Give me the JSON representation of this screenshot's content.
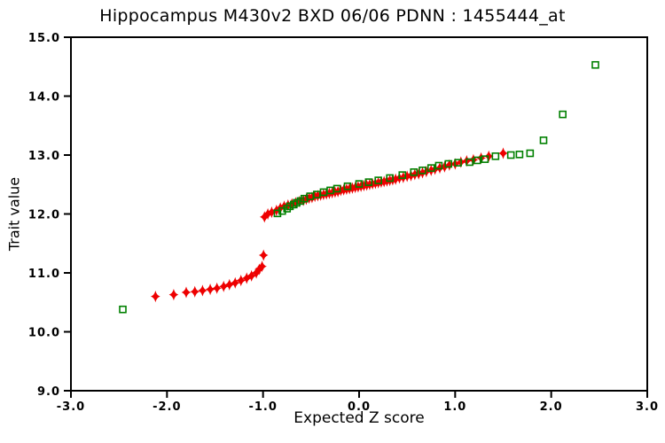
{
  "window": {
    "background": "#ffffff"
  },
  "chart_data": {
    "type": "scatter",
    "title": "Hippocampus M430v2 BXD 06/06 PDNN : 1455444_at",
    "xlabel": "Expected Z score",
    "ylabel": "Trait value",
    "xlim": [
      -3.0,
      3.0
    ],
    "ylim": [
      9.0,
      15.0
    ],
    "x_ticks": [
      -3.0,
      -2.0,
      -1.0,
      0.0,
      1.0,
      2.0,
      3.0
    ],
    "x_tick_labels": [
      "-3.0",
      "-2.0",
      "-1.0",
      "0.0",
      "1.0",
      "2.0",
      "3.0"
    ],
    "y_ticks": [
      9.0,
      10.0,
      11.0,
      12.0,
      13.0,
      14.0,
      15.0
    ],
    "y_tick_labels": [
      "9.0",
      "10.0",
      "11.0",
      "12.0",
      "13.0",
      "14.0",
      "15.0"
    ],
    "grid": false,
    "legend": "none",
    "axis_color": "#000000",
    "series": [
      {
        "name": "trait-values-red-diamonds",
        "marker": "filled-diamond",
        "color": "#ee0000",
        "points": [
          [
            -2.12,
            10.6
          ],
          [
            -1.93,
            10.63
          ],
          [
            -1.8,
            10.67
          ],
          [
            -1.71,
            10.68
          ],
          [
            -1.63,
            10.7
          ],
          [
            -1.55,
            10.72
          ],
          [
            -1.48,
            10.74
          ],
          [
            -1.41,
            10.77
          ],
          [
            -1.35,
            10.8
          ],
          [
            -1.29,
            10.83
          ],
          [
            -1.23,
            10.87
          ],
          [
            -1.17,
            10.91
          ],
          [
            -1.12,
            10.95
          ],
          [
            -1.07,
            11.0
          ],
          [
            -1.04,
            11.06
          ],
          [
            -1.01,
            11.11
          ],
          [
            -0.995,
            11.3
          ],
          [
            -0.985,
            11.95
          ],
          [
            -0.95,
            12.0
          ],
          [
            -0.91,
            12.03
          ],
          [
            -0.86,
            12.06
          ],
          [
            -0.82,
            12.1
          ],
          [
            -0.78,
            12.13
          ],
          [
            -0.74,
            12.15
          ],
          [
            -0.7,
            12.17
          ],
          [
            -0.66,
            12.19
          ],
          [
            -0.62,
            12.21
          ],
          [
            -0.58,
            12.23
          ],
          [
            -0.55,
            12.25
          ],
          [
            -0.52,
            12.27
          ],
          [
            -0.49,
            12.28
          ],
          [
            -0.46,
            12.3
          ],
          [
            -0.43,
            12.31
          ],
          [
            -0.4,
            12.32
          ],
          [
            -0.37,
            12.33
          ],
          [
            -0.34,
            12.34
          ],
          [
            -0.31,
            12.35
          ],
          [
            -0.28,
            12.36
          ],
          [
            -0.25,
            12.37
          ],
          [
            -0.22,
            12.38
          ],
          [
            -0.19,
            12.4
          ],
          [
            -0.16,
            12.41
          ],
          [
            -0.13,
            12.42
          ],
          [
            -0.1,
            12.43
          ],
          [
            -0.07,
            12.44
          ],
          [
            -0.04,
            12.45
          ],
          [
            -0.01,
            12.46
          ],
          [
            0.02,
            12.47
          ],
          [
            0.05,
            12.48
          ],
          [
            0.08,
            12.49
          ],
          [
            0.11,
            12.5
          ],
          [
            0.14,
            12.51
          ],
          [
            0.17,
            12.52
          ],
          [
            0.2,
            12.53
          ],
          [
            0.23,
            12.54
          ],
          [
            0.26,
            12.55
          ],
          [
            0.29,
            12.56
          ],
          [
            0.32,
            12.57
          ],
          [
            0.35,
            12.58
          ],
          [
            0.38,
            12.59
          ],
          [
            0.42,
            12.61
          ],
          [
            0.46,
            12.62
          ],
          [
            0.5,
            12.64
          ],
          [
            0.54,
            12.65
          ],
          [
            0.58,
            12.67
          ],
          [
            0.62,
            12.68
          ],
          [
            0.66,
            12.7
          ],
          [
            0.7,
            12.72
          ],
          [
            0.75,
            12.74
          ],
          [
            0.79,
            12.76
          ],
          [
            0.84,
            12.78
          ],
          [
            0.89,
            12.8
          ],
          [
            0.94,
            12.83
          ],
          [
            1.0,
            12.85
          ],
          [
            1.06,
            12.88
          ],
          [
            1.12,
            12.9
          ],
          [
            1.19,
            12.92
          ],
          [
            1.27,
            12.95
          ],
          [
            1.35,
            12.98
          ],
          [
            1.5,
            13.03
          ]
        ]
      },
      {
        "name": "trait-values-green-squares",
        "marker": "open-square",
        "color": "#008000",
        "points": [
          [
            -2.46,
            10.38
          ],
          [
            -0.85,
            12.01
          ],
          [
            -0.8,
            12.05
          ],
          [
            -0.75,
            12.09
          ],
          [
            -0.72,
            12.13
          ],
          [
            -0.68,
            12.16
          ],
          [
            -0.65,
            12.19
          ],
          [
            -0.61,
            12.22
          ],
          [
            -0.57,
            12.26
          ],
          [
            -0.51,
            12.3
          ],
          [
            -0.44,
            12.33
          ],
          [
            -0.37,
            12.37
          ],
          [
            -0.3,
            12.4
          ],
          [
            -0.23,
            12.43
          ],
          [
            -0.12,
            12.47
          ],
          [
            0.0,
            12.51
          ],
          [
            0.1,
            12.54
          ],
          [
            0.2,
            12.57
          ],
          [
            0.32,
            12.61
          ],
          [
            0.45,
            12.66
          ],
          [
            0.57,
            12.71
          ],
          [
            0.66,
            12.74
          ],
          [
            0.75,
            12.78
          ],
          [
            0.83,
            12.82
          ],
          [
            0.93,
            12.85
          ],
          [
            1.03,
            12.87
          ],
          [
            1.15,
            12.88
          ],
          [
            1.23,
            12.91
          ],
          [
            1.31,
            12.93
          ],
          [
            1.42,
            12.98
          ],
          [
            1.58,
            13.0
          ],
          [
            1.67,
            13.01
          ],
          [
            1.78,
            13.03
          ],
          [
            1.92,
            13.25
          ],
          [
            2.12,
            13.69
          ],
          [
            2.46,
            14.53
          ]
        ]
      }
    ]
  }
}
